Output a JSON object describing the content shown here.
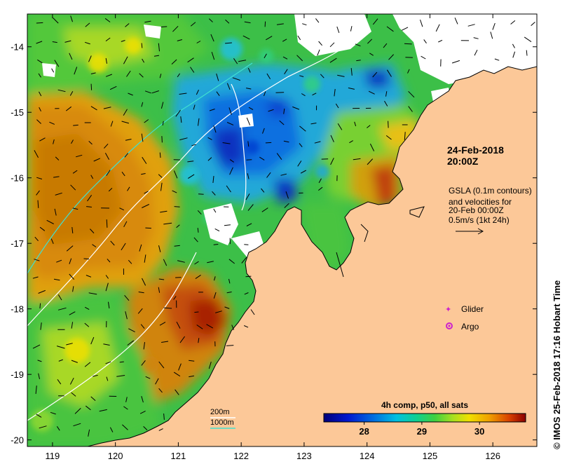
{
  "map": {
    "lon_ticks": [
      "119",
      "120",
      "121",
      "122",
      "123",
      "124",
      "125",
      "126"
    ],
    "lat_ticks": [
      "-14",
      "-15",
      "-16",
      "-17",
      "-18",
      "-19",
      "-20"
    ],
    "lon_range": [
      118.6,
      126.7
    ],
    "lat_range": [
      -20.1,
      -13.5
    ],
    "timestamp": "24-Feb-2018\n   20:00Z",
    "gsla_note": [
      "GSLA (0.1m contours)",
      "and velocities for",
      "20-Feb 00:00Z",
      "0.5m/s (1kt 24h)"
    ],
    "legend": {
      "glider": "Glider",
      "argo": "Argo",
      "glider_color": "#cc22cc",
      "argo_color": "#cc22cc"
    },
    "bathymetry_legend": {
      "item_200": "200m",
      "item_1000": "1000m",
      "color_200": "#ffffff",
      "color_1000": "#40e0d0"
    },
    "colorbar": {
      "title": "4h comp, p50, all sats",
      "ticks": [
        "28",
        "29",
        "30"
      ],
      "range": [
        27.3,
        30.8
      ],
      "tick_values": [
        28,
        29,
        30
      ]
    },
    "credit": "© IMOS 25-Feb-2018 17:16 Hobart Time",
    "colors": {
      "land": "#fcc898",
      "missing": "#ffffff"
    }
  }
}
